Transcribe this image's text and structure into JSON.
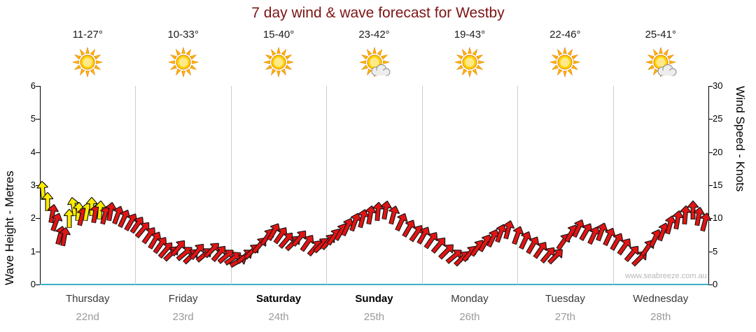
{
  "title": "7 day wind & wave forecast for Westby",
  "watermark": "www.seabreeze.com.au",
  "axes": {
    "left_label": "Wave Height - Metres",
    "right_label": "Wind Speed - Knots",
    "left_ticks": [
      0,
      1,
      2,
      3,
      4,
      5,
      6
    ],
    "right_ticks": [
      0,
      5,
      10,
      15,
      20,
      25,
      30
    ]
  },
  "forecast_days": [
    {
      "temp": "11-27°",
      "icon": "sun",
      "day": "Thursday",
      "date": "22nd",
      "bold": false
    },
    {
      "temp": "10-33°",
      "icon": "sun",
      "day": "Friday",
      "date": "23rd",
      "bold": false
    },
    {
      "temp": "15-40°",
      "icon": "sun",
      "day": "Saturday",
      "date": "24th",
      "bold": true
    },
    {
      "temp": "23-42°",
      "icon": "sun-cloud",
      "day": "Sunday",
      "date": "25th",
      "bold": true
    },
    {
      "temp": "19-43°",
      "icon": "sun",
      "day": "Monday",
      "date": "26th",
      "bold": false
    },
    {
      "temp": "22-46°",
      "icon": "sun",
      "day": "Tuesday",
      "date": "27th",
      "bold": false
    },
    {
      "temp": "25-41°",
      "icon": "sun-cloud",
      "day": "Wednesday",
      "date": "28th",
      "bold": false
    }
  ],
  "chart_data": {
    "type": "scatter",
    "description": "Wind/wave arrow chart: each point is a wind-direction arrow; y = wave height in metres (left axis) equivalently wind speed in knots (right axis, 5 knots per metre); x = time across 7 days",
    "x_range_days": [
      0,
      7
    ],
    "ylim_left": [
      0,
      6
    ],
    "ylim_right": [
      0,
      30
    ],
    "arrow_colors": {
      "red": "#e31414",
      "yellow": "#ffec00"
    },
    "points": [
      [
        0.03,
        2.85,
        355,
        "y"
      ],
      [
        0.08,
        2.5,
        0,
        "y"
      ],
      [
        0.13,
        2.15,
        10,
        "r"
      ],
      [
        0.17,
        1.9,
        20,
        "r"
      ],
      [
        0.21,
        1.5,
        15,
        "r"
      ],
      [
        0.26,
        1.45,
        10,
        "r"
      ],
      [
        0.31,
        2.0,
        0,
        "y"
      ],
      [
        0.35,
        2.35,
        350,
        "y"
      ],
      [
        0.4,
        2.2,
        5,
        "y"
      ],
      [
        0.44,
        2.05,
        15,
        "r"
      ],
      [
        0.49,
        2.2,
        10,
        "y"
      ],
      [
        0.54,
        2.35,
        0,
        "y"
      ],
      [
        0.58,
        2.15,
        10,
        "r"
      ],
      [
        0.63,
        2.25,
        5,
        "y"
      ],
      [
        0.68,
        2.1,
        15,
        "r"
      ],
      [
        0.74,
        2.2,
        10,
        "r"
      ],
      [
        0.81,
        2.1,
        20,
        "r"
      ],
      [
        0.88,
        2.0,
        25,
        "r"
      ],
      [
        0.95,
        1.9,
        30,
        "r"
      ],
      [
        1.02,
        1.8,
        35,
        "r"
      ],
      [
        1.08,
        1.65,
        40,
        "r"
      ],
      [
        1.14,
        1.5,
        35,
        "r"
      ],
      [
        1.2,
        1.35,
        30,
        "r"
      ],
      [
        1.26,
        1.2,
        35,
        "r"
      ],
      [
        1.32,
        1.05,
        40,
        "r"
      ],
      [
        1.38,
        0.95,
        45,
        "r"
      ],
      [
        1.45,
        1.1,
        40,
        "r"
      ],
      [
        1.52,
        0.95,
        50,
        "r"
      ],
      [
        1.58,
        0.85,
        45,
        "r"
      ],
      [
        1.65,
        1.0,
        40,
        "r"
      ],
      [
        1.72,
        0.9,
        50,
        "r"
      ],
      [
        1.8,
        1.05,
        45,
        "r"
      ],
      [
        1.88,
        0.95,
        40,
        "r"
      ],
      [
        1.95,
        0.85,
        50,
        "r"
      ],
      [
        2.02,
        0.8,
        55,
        "r"
      ],
      [
        2.08,
        0.7,
        60,
        "r"
      ],
      [
        2.15,
        0.85,
        50,
        "r"
      ],
      [
        2.22,
        1.0,
        45,
        "r"
      ],
      [
        2.3,
        1.2,
        40,
        "r"
      ],
      [
        2.38,
        1.45,
        35,
        "r"
      ],
      [
        2.45,
        1.6,
        30,
        "r"
      ],
      [
        2.52,
        1.5,
        35,
        "r"
      ],
      [
        2.58,
        1.35,
        40,
        "r"
      ],
      [
        2.65,
        1.25,
        45,
        "r"
      ],
      [
        2.72,
        1.4,
        40,
        "r"
      ],
      [
        2.8,
        1.25,
        35,
        "r"
      ],
      [
        2.88,
        1.1,
        40,
        "r"
      ],
      [
        2.95,
        1.2,
        45,
        "r"
      ],
      [
        3.02,
        1.3,
        40,
        "r"
      ],
      [
        3.08,
        1.45,
        35,
        "r"
      ],
      [
        3.15,
        1.6,
        30,
        "r"
      ],
      [
        3.22,
        1.75,
        25,
        "r"
      ],
      [
        3.3,
        1.9,
        20,
        "r"
      ],
      [
        3.38,
        2.0,
        15,
        "r"
      ],
      [
        3.46,
        2.1,
        10,
        "r"
      ],
      [
        3.54,
        2.2,
        5,
        "r"
      ],
      [
        3.62,
        2.25,
        10,
        "r"
      ],
      [
        3.7,
        2.1,
        15,
        "r"
      ],
      [
        3.78,
        1.9,
        25,
        "r"
      ],
      [
        3.86,
        1.7,
        30,
        "r"
      ],
      [
        3.94,
        1.55,
        35,
        "r"
      ],
      [
        4.02,
        1.5,
        30,
        "r"
      ],
      [
        4.1,
        1.35,
        35,
        "r"
      ],
      [
        4.18,
        1.2,
        40,
        "r"
      ],
      [
        4.26,
        1.0,
        45,
        "r"
      ],
      [
        4.34,
        0.85,
        50,
        "r"
      ],
      [
        4.42,
        0.8,
        45,
        "r"
      ],
      [
        4.5,
        0.95,
        40,
        "r"
      ],
      [
        4.58,
        1.1,
        35,
        "r"
      ],
      [
        4.66,
        1.25,
        30,
        "r"
      ],
      [
        4.74,
        1.4,
        25,
        "r"
      ],
      [
        4.82,
        1.55,
        20,
        "r"
      ],
      [
        4.9,
        1.65,
        15,
        "r"
      ],
      [
        5.0,
        1.5,
        20,
        "r"
      ],
      [
        5.08,
        1.35,
        25,
        "r"
      ],
      [
        5.16,
        1.2,
        30,
        "r"
      ],
      [
        5.24,
        1.05,
        35,
        "r"
      ],
      [
        5.32,
        0.9,
        40,
        "r"
      ],
      [
        5.4,
        0.85,
        45,
        "r"
      ],
      [
        5.48,
        1.3,
        35,
        "r"
      ],
      [
        5.56,
        1.55,
        30,
        "r"
      ],
      [
        5.64,
        1.7,
        25,
        "r"
      ],
      [
        5.72,
        1.6,
        30,
        "r"
      ],
      [
        5.8,
        1.5,
        25,
        "r"
      ],
      [
        5.88,
        1.6,
        20,
        "r"
      ],
      [
        5.96,
        1.45,
        25,
        "r"
      ],
      [
        6.04,
        1.3,
        30,
        "r"
      ],
      [
        6.12,
        1.15,
        35,
        "r"
      ],
      [
        6.2,
        0.95,
        40,
        "r"
      ],
      [
        6.28,
        0.8,
        45,
        "r"
      ],
      [
        6.36,
        1.1,
        35,
        "r"
      ],
      [
        6.44,
        1.4,
        25,
        "r"
      ],
      [
        6.52,
        1.6,
        20,
        "r"
      ],
      [
        6.6,
        1.8,
        15,
        "r"
      ],
      [
        6.68,
        1.95,
        10,
        "r"
      ],
      [
        6.76,
        2.1,
        5,
        "r"
      ],
      [
        6.84,
        2.25,
        0,
        "r"
      ],
      [
        6.9,
        2.05,
        10,
        "r"
      ],
      [
        6.96,
        1.9,
        15,
        "r"
      ]
    ]
  }
}
